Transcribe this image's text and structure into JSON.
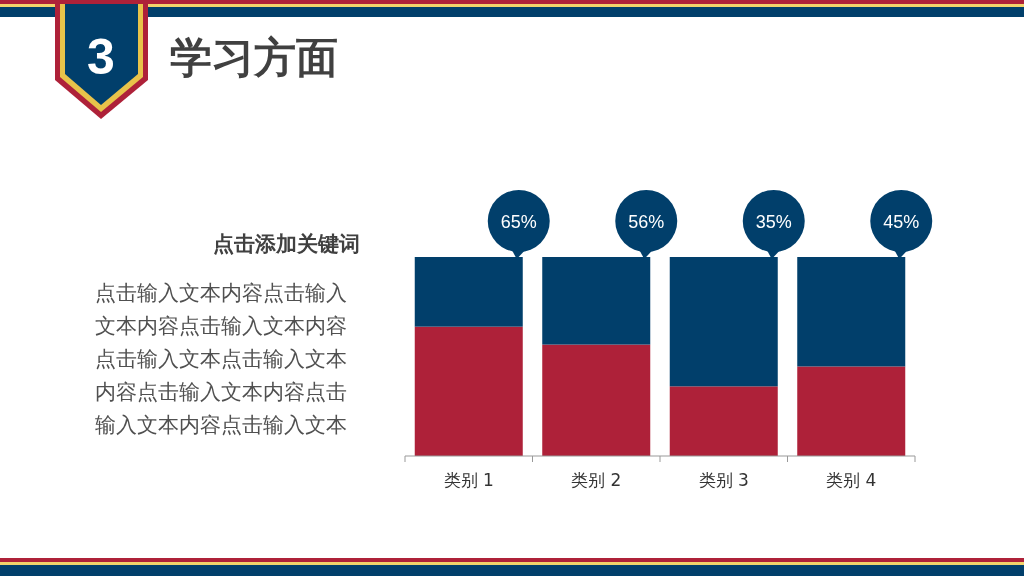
{
  "chart_data": {
    "type": "bar",
    "stacked": true,
    "title": "学习方面",
    "annotations": [
      "3",
      "点击添加关键词",
      "点击输入文本内容点击输入文本内容点击输入文本内容点击输入文本点击输入文本内容点击输入文本内容点击输入文本内容点击输入文本"
    ],
    "categories": [
      "类别 1",
      "类别 2",
      "类别 3",
      "类别 4"
    ],
    "series": [
      {
        "color": "#ae2139",
        "values": [
          65,
          56,
          35,
          45
        ],
        "value_labels": [
          "65%",
          "56%",
          "35%",
          "45%"
        ]
      },
      {
        "color": "#013f6b",
        "values": [
          35,
          44,
          65,
          55
        ]
      }
    ]
  }
}
